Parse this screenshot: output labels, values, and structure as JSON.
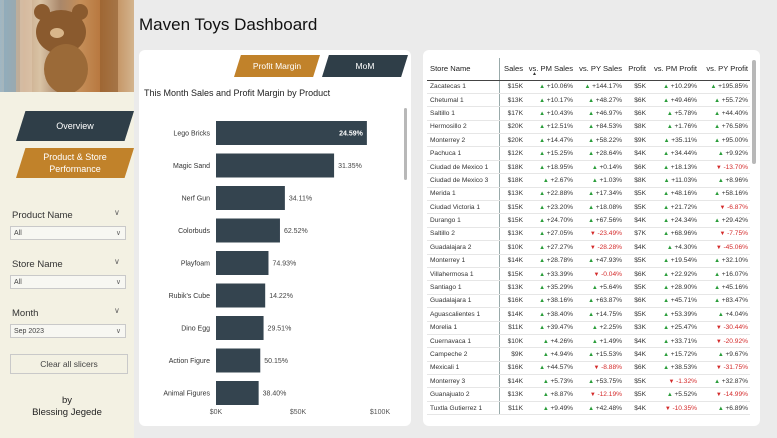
{
  "dashboard_title": "Maven Toys Dashboard",
  "sidebar": {
    "nav": {
      "overview": "Overview",
      "performance": "Product & Store Performance"
    },
    "slicers": [
      {
        "label": "Product Name",
        "value": "All"
      },
      {
        "label": "Store Name",
        "value": "All"
      },
      {
        "label": "Month",
        "value": "Sep 2023"
      }
    ],
    "clear_label": "Clear all slicers",
    "author_by": "by",
    "author_name": "Blessing Jegede"
  },
  "chart_panel": {
    "tab_margin": "Profit Margin",
    "tab_mom": "MoM"
  },
  "chart_data": {
    "type": "bar",
    "title": "This Month Sales and Profit Margin by Product",
    "categories": [
      "Lego Bricks",
      "Magic Sand",
      "Nerf Gun",
      "Colorbuds",
      "Playfoam",
      "Rubik's Cube",
      "Dino Egg",
      "Action Figure",
      "Animal Figures"
    ],
    "values": [
      92,
      72,
      42,
      39,
      32,
      30,
      29,
      27,
      26
    ],
    "labels": [
      "24.59%",
      "31.35%",
      "34.11%",
      "62.52%",
      "74.93%",
      "14.22%",
      "29.51%",
      "50.15%",
      "38.40%"
    ],
    "xticks": [
      "$0K",
      "$50K",
      "$100K"
    ],
    "xlim": [
      0,
      100
    ],
    "color": "#34444f"
  },
  "table": {
    "headers": [
      "Store Name",
      "Sales",
      "vs. PM Sales",
      "vs. PY Sales",
      "Profit",
      "vs. PM Profit",
      "vs. PY Profit"
    ],
    "rows": [
      {
        "store": "Zacatecas 1",
        "sales": "$15K",
        "pm_sales": {
          "dir": "up",
          "val": "+10.06%"
        },
        "py_sales": {
          "dir": "up",
          "val": "+144.17%"
        },
        "profit": "$5K",
        "pm_profit": {
          "dir": "up",
          "val": "+10.29%"
        },
        "py_profit": {
          "dir": "up",
          "val": "+195.85%"
        }
      },
      {
        "store": "Chetumal 1",
        "sales": "$13K",
        "pm_sales": {
          "dir": "up",
          "val": "+10.17%"
        },
        "py_sales": {
          "dir": "up",
          "val": "+48.27%"
        },
        "profit": "$6K",
        "pm_profit": {
          "dir": "up",
          "val": "+49.46%"
        },
        "py_profit": {
          "dir": "up",
          "val": "+55.72%"
        }
      },
      {
        "store": "Saltillo 1",
        "sales": "$17K",
        "pm_sales": {
          "dir": "up",
          "val": "+10.43%"
        },
        "py_sales": {
          "dir": "up",
          "val": "+46.97%"
        },
        "profit": "$6K",
        "pm_profit": {
          "dir": "up",
          "val": "+5.78%"
        },
        "py_profit": {
          "dir": "up",
          "val": "+44.40%"
        }
      },
      {
        "store": "Hermosillo 2",
        "sales": "$20K",
        "pm_sales": {
          "dir": "up",
          "val": "+12.51%"
        },
        "py_sales": {
          "dir": "up",
          "val": "+84.53%"
        },
        "profit": "$8K",
        "pm_profit": {
          "dir": "up",
          "val": "+1.76%"
        },
        "py_profit": {
          "dir": "up",
          "val": "+76.58%"
        }
      },
      {
        "store": "Monterrey 2",
        "sales": "$20K",
        "pm_sales": {
          "dir": "up",
          "val": "+14.47%"
        },
        "py_sales": {
          "dir": "up",
          "val": "+58.22%"
        },
        "profit": "$9K",
        "pm_profit": {
          "dir": "up",
          "val": "+35.11%"
        },
        "py_profit": {
          "dir": "up",
          "val": "+95.00%"
        }
      },
      {
        "store": "Pachuca 1",
        "sales": "$12K",
        "pm_sales": {
          "dir": "up",
          "val": "+15.25%"
        },
        "py_sales": {
          "dir": "up",
          "val": "+28.64%"
        },
        "profit": "$4K",
        "pm_profit": {
          "dir": "up",
          "val": "+34.44%"
        },
        "py_profit": {
          "dir": "up",
          "val": "+9.92%"
        }
      },
      {
        "store": "Ciudad de Mexico 1",
        "sales": "$18K",
        "pm_sales": {
          "dir": "up",
          "val": "+18.95%"
        },
        "py_sales": {
          "dir": "up",
          "val": "+0.14%"
        },
        "profit": "$6K",
        "pm_profit": {
          "dir": "up",
          "val": "+18.13%"
        },
        "py_profit": {
          "dir": "dn",
          "val": "-13.70%"
        }
      },
      {
        "store": "Ciudad de Mexico 3",
        "sales": "$18K",
        "pm_sales": {
          "dir": "up",
          "val": "+2.67%"
        },
        "py_sales": {
          "dir": "up",
          "val": "+1.03%"
        },
        "profit": "$8K",
        "pm_profit": {
          "dir": "up",
          "val": "+11.03%"
        },
        "py_profit": {
          "dir": "up",
          "val": "+8.96%"
        }
      },
      {
        "store": "Merida 1",
        "sales": "$13K",
        "pm_sales": {
          "dir": "up",
          "val": "+22.88%"
        },
        "py_sales": {
          "dir": "up",
          "val": "+17.34%"
        },
        "profit": "$5K",
        "pm_profit": {
          "dir": "up",
          "val": "+48.16%"
        },
        "py_profit": {
          "dir": "up",
          "val": "+58.16%"
        }
      },
      {
        "store": "Ciudad Victoria 1",
        "sales": "$15K",
        "pm_sales": {
          "dir": "up",
          "val": "+23.20%"
        },
        "py_sales": {
          "dir": "up",
          "val": "+18.08%"
        },
        "profit": "$5K",
        "pm_profit": {
          "dir": "up",
          "val": "+21.72%"
        },
        "py_profit": {
          "dir": "dn",
          "val": "-6.87%"
        }
      },
      {
        "store": "Durango 1",
        "sales": "$15K",
        "pm_sales": {
          "dir": "up",
          "val": "+24.70%"
        },
        "py_sales": {
          "dir": "up",
          "val": "+67.56%"
        },
        "profit": "$4K",
        "pm_profit": {
          "dir": "up",
          "val": "+24.34%"
        },
        "py_profit": {
          "dir": "up",
          "val": "+29.42%"
        }
      },
      {
        "store": "Saltillo 2",
        "sales": "$13K",
        "pm_sales": {
          "dir": "up",
          "val": "+27.05%"
        },
        "py_sales": {
          "dir": "dn",
          "val": "-23.49%"
        },
        "profit": "$7K",
        "pm_profit": {
          "dir": "up",
          "val": "+68.96%"
        },
        "py_profit": {
          "dir": "dn",
          "val": "-7.75%"
        }
      },
      {
        "store": "Guadalajara 2",
        "sales": "$10K",
        "pm_sales": {
          "dir": "up",
          "val": "+27.27%"
        },
        "py_sales": {
          "dir": "dn",
          "val": "-28.28%"
        },
        "profit": "$4K",
        "pm_profit": {
          "dir": "up",
          "val": "+4.30%"
        },
        "py_profit": {
          "dir": "dn",
          "val": "-45.06%"
        }
      },
      {
        "store": "Monterrey 1",
        "sales": "$14K",
        "pm_sales": {
          "dir": "up",
          "val": "+28.78%"
        },
        "py_sales": {
          "dir": "up",
          "val": "+47.93%"
        },
        "profit": "$5K",
        "pm_profit": {
          "dir": "up",
          "val": "+19.54%"
        },
        "py_profit": {
          "dir": "up",
          "val": "+32.10%"
        }
      },
      {
        "store": "Villahermosa 1",
        "sales": "$15K",
        "pm_sales": {
          "dir": "up",
          "val": "+33.39%"
        },
        "py_sales": {
          "dir": "dn",
          "val": "-0.04%"
        },
        "profit": "$6K",
        "pm_profit": {
          "dir": "up",
          "val": "+22.92%"
        },
        "py_profit": {
          "dir": "up",
          "val": "+16.07%"
        }
      },
      {
        "store": "Santiago 1",
        "sales": "$13K",
        "pm_sales": {
          "dir": "up",
          "val": "+35.29%"
        },
        "py_sales": {
          "dir": "up",
          "val": "+5.64%"
        },
        "profit": "$5K",
        "pm_profit": {
          "dir": "up",
          "val": "+28.90%"
        },
        "py_profit": {
          "dir": "up",
          "val": "+45.16%"
        }
      },
      {
        "store": "Guadalajara 1",
        "sales": "$16K",
        "pm_sales": {
          "dir": "up",
          "val": "+38.16%"
        },
        "py_sales": {
          "dir": "up",
          "val": "+63.87%"
        },
        "profit": "$6K",
        "pm_profit": {
          "dir": "up",
          "val": "+45.71%"
        },
        "py_profit": {
          "dir": "up",
          "val": "+83.47%"
        }
      },
      {
        "store": "Aguascalientes 1",
        "sales": "$14K",
        "pm_sales": {
          "dir": "up",
          "val": "+38.40%"
        },
        "py_sales": {
          "dir": "up",
          "val": "+14.75%"
        },
        "profit": "$5K",
        "pm_profit": {
          "dir": "up",
          "val": "+53.39%"
        },
        "py_profit": {
          "dir": "up",
          "val": "+4.04%"
        }
      },
      {
        "store": "Morelia 1",
        "sales": "$11K",
        "pm_sales": {
          "dir": "up",
          "val": "+39.47%"
        },
        "py_sales": {
          "dir": "up",
          "val": "+2.25%"
        },
        "profit": "$3K",
        "pm_profit": {
          "dir": "up",
          "val": "+25.47%"
        },
        "py_profit": {
          "dir": "dn",
          "val": "-30.44%"
        }
      },
      {
        "store": "Cuernavaca 1",
        "sales": "$10K",
        "pm_sales": {
          "dir": "up",
          "val": "+4.26%"
        },
        "py_sales": {
          "dir": "up",
          "val": "+1.49%"
        },
        "profit": "$4K",
        "pm_profit": {
          "dir": "up",
          "val": "+33.71%"
        },
        "py_profit": {
          "dir": "dn",
          "val": "-20.92%"
        }
      },
      {
        "store": "Campeche 2",
        "sales": "$9K",
        "pm_sales": {
          "dir": "up",
          "val": "+4.94%"
        },
        "py_sales": {
          "dir": "up",
          "val": "+15.53%"
        },
        "profit": "$4K",
        "pm_profit": {
          "dir": "up",
          "val": "+15.72%"
        },
        "py_profit": {
          "dir": "up",
          "val": "+9.67%"
        }
      },
      {
        "store": "Mexicali 1",
        "sales": "$16K",
        "pm_sales": {
          "dir": "up",
          "val": "+44.57%"
        },
        "py_sales": {
          "dir": "dn",
          "val": "-8.88%"
        },
        "profit": "$6K",
        "pm_profit": {
          "dir": "up",
          "val": "+38.53%"
        },
        "py_profit": {
          "dir": "dn",
          "val": "-31.75%"
        }
      },
      {
        "store": "Monterrey 3",
        "sales": "$14K",
        "pm_sales": {
          "dir": "up",
          "val": "+5.73%"
        },
        "py_sales": {
          "dir": "up",
          "val": "+53.75%"
        },
        "profit": "$5K",
        "pm_profit": {
          "dir": "dn",
          "val": "-1.32%"
        },
        "py_profit": {
          "dir": "up",
          "val": "+32.87%"
        }
      },
      {
        "store": "Guanajuato 2",
        "sales": "$13K",
        "pm_sales": {
          "dir": "up",
          "val": "+8.87%"
        },
        "py_sales": {
          "dir": "dn",
          "val": "-12.19%"
        },
        "profit": "$5K",
        "pm_profit": {
          "dir": "up",
          "val": "+5.52%"
        },
        "py_profit": {
          "dir": "dn",
          "val": "-14.99%"
        }
      },
      {
        "store": "Tuxtla Gutierrez 1",
        "sales": "$11K",
        "pm_sales": {
          "dir": "up",
          "val": "+9.49%"
        },
        "py_sales": {
          "dir": "up",
          "val": "+42.48%"
        },
        "profit": "$4K",
        "pm_profit": {
          "dir": "dn",
          "val": "-10.35%"
        },
        "py_profit": {
          "dir": "up",
          "val": "+6.89%"
        }
      }
    ]
  }
}
